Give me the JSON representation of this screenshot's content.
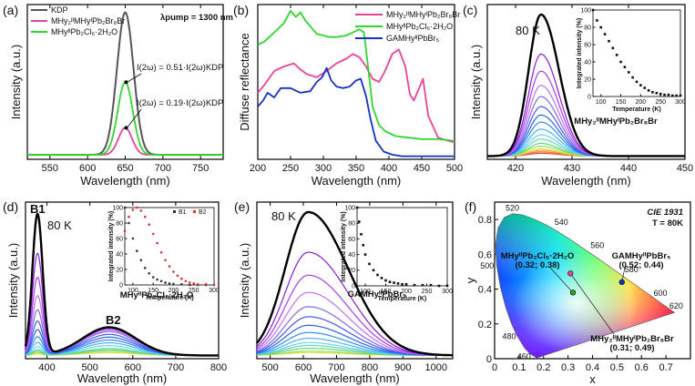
{
  "chart_data": [
    {
      "panel": "(a)",
      "type": "line",
      "xlabel": "Wavelength (nm)",
      "ylabel": "Intensity (a.u.)",
      "xlim": [
        520,
        780
      ],
      "ylim": [
        0,
        1.08
      ],
      "xticks": [
        550,
        600,
        650,
        700,
        750
      ],
      "yticks_shown": false,
      "pump_label": "λpump = 1300 nm",
      "series": [
        {
          "name": "KDP",
          "color": "#555555",
          "width": 2.0,
          "center": 650,
          "sigma": 11,
          "amplitude": 1.0
        },
        {
          "name": "MHy2IIMHyIPb2Br8Br",
          "color": "#e8439a",
          "width": 1.8,
          "center": 650,
          "sigma": 9,
          "amplitude": 0.19
        },
        {
          "name": "MHyIIPb2Cl6·2H2O",
          "color": "#2fd62f",
          "width": 1.8,
          "center": 650,
          "sigma": 10,
          "amplitude": 0.51
        }
      ],
      "legend": [
        {
          "label": "KDP",
          "color": "#555555"
        },
        {
          "label": "MHy₂ᴵᴵMHyᴵPb₂Br₈Br",
          "color": "#e8439a"
        },
        {
          "label": "MHyᴵᴵPb₂Cl₆·2H₂O",
          "color": "#2fd62f"
        }
      ],
      "annotations": [
        "I(2ω) = 0.51·I(2ω)KDP",
        "I(2ω) = 0.19·I(2ω)KDP"
      ]
    },
    {
      "panel": "(b)",
      "type": "line",
      "xlabel": "Wavelength (nm)",
      "ylabel": "Diffuse reflectance",
      "xlim": [
        200,
        500
      ],
      "ylim": [
        0,
        1
      ],
      "xticks": [
        200,
        250,
        300,
        350,
        400,
        450,
        500
      ],
      "yticks_shown": false,
      "series": [
        {
          "name": "MHy2IIMHyIPb2Br8Br",
          "color": "#e8439a",
          "x": [
            200,
            210,
            225,
            240,
            255,
            265,
            275,
            290,
            305,
            320,
            335,
            345,
            355,
            365,
            375,
            385,
            395,
            405,
            415,
            425,
            432,
            438,
            445,
            452,
            460,
            475,
            490,
            500
          ],
          "y": [
            0.43,
            0.48,
            0.57,
            0.6,
            0.62,
            0.58,
            0.55,
            0.53,
            0.57,
            0.62,
            0.65,
            0.68,
            0.66,
            0.6,
            0.52,
            0.5,
            0.58,
            0.68,
            0.71,
            0.6,
            0.42,
            0.38,
            0.45,
            0.52,
            0.28,
            0.14,
            0.12,
            0.11
          ]
        },
        {
          "name": "MHyIIPb2Cl6·2H2O",
          "color": "#2fd62f",
          "x": [
            200,
            210,
            225,
            240,
            250,
            258,
            265,
            272,
            280,
            290,
            300,
            310,
            320,
            335,
            345,
            355,
            362,
            368,
            375,
            385,
            395,
            410,
            430,
            450,
            475,
            500
          ],
          "y": [
            0.74,
            0.76,
            0.82,
            0.88,
            0.96,
            0.92,
            0.95,
            0.9,
            0.86,
            0.81,
            0.8,
            0.79,
            0.79,
            0.8,
            0.82,
            0.84,
            0.82,
            0.6,
            0.34,
            0.22,
            0.18,
            0.15,
            0.14,
            0.13,
            0.13,
            0.12
          ]
        },
        {
          "name": "GAMHyIIPbBr5",
          "color": "#1430c8",
          "x": [
            200,
            208,
            215,
            225,
            235,
            250,
            265,
            280,
            290,
            298,
            305,
            312,
            320,
            330,
            340,
            350,
            357,
            365,
            372,
            380,
            392,
            405,
            420,
            440,
            470,
            500
          ],
          "y": [
            0.34,
            0.38,
            0.43,
            0.4,
            0.46,
            0.46,
            0.43,
            0.44,
            0.5,
            0.53,
            0.59,
            0.51,
            0.47,
            0.46,
            0.47,
            0.51,
            0.52,
            0.41,
            0.26,
            0.12,
            0.05,
            0.03,
            0.02,
            0.02,
            0.02,
            0.02
          ]
        }
      ],
      "legend": [
        {
          "label": "MHy₂ᴵᴵMHyᴵPb₂Br₈Br",
          "color": "#e8439a"
        },
        {
          "label": "MHyᴵᴵPb₂Cl₆·2H₂O",
          "color": "#2fd62f"
        },
        {
          "label": "GAMHyᴵᴵPbBr₅",
          "color": "#1430c8"
        }
      ]
    },
    {
      "panel": "(c)",
      "type": "line",
      "xlabel": "Wavelength (nm)",
      "ylabel": "Intensity (a.u.)",
      "xlim": [
        415,
        450
      ],
      "xticks": [
        420,
        430,
        440,
        450
      ],
      "temp_label": "80 K",
      "compound_label": "MHy₂ᴵᴵMHyᴵPb₂Br₈Br",
      "family": {
        "center": 424.5,
        "sigma_left": 2.2,
        "sigma_right": 3.2,
        "amplitudes": [
          1.0,
          0.72,
          0.6,
          0.5,
          0.42,
          0.35,
          0.29,
          0.24,
          0.19,
          0.15,
          0.12,
          0.09,
          0.07,
          0.05,
          0.04,
          0.03,
          0.02
        ]
      },
      "inset": {
        "xlabel": "Temperature (K)",
        "ylabel": "Integrated intensity (%)",
        "xlim": [
          80,
          300
        ],
        "ylim": [
          0,
          100
        ],
        "xticks": [
          100,
          150,
          200,
          250,
          300
        ],
        "yticks": [
          0,
          20,
          40,
          60,
          80,
          100
        ],
        "x": [
          80,
          90,
          100,
          110,
          120,
          130,
          140,
          150,
          160,
          170,
          180,
          190,
          200,
          210,
          220,
          230,
          240,
          250,
          260,
          270,
          280,
          290,
          300
        ],
        "y": [
          100,
          88,
          80,
          72,
          64,
          56,
          48,
          40,
          34,
          28,
          22,
          17,
          13,
          10,
          7,
          5,
          4,
          3,
          2,
          2,
          1,
          1,
          1
        ]
      }
    },
    {
      "panel": "(d)",
      "type": "line",
      "xlabel": "Wavelength (nm)",
      "ylabel": "Intensity (a.u.)",
      "xlim": [
        350,
        800
      ],
      "xticks": [
        400,
        500,
        600,
        700,
        800
      ],
      "temp_label": "80 K",
      "band_labels": [
        "B1",
        "B2"
      ],
      "compound_label": "MHyᴵᴵPb₂Cl₆·2H₂O",
      "family": {
        "b1_center": 378,
        "b1_sigma": 12,
        "b2_center": 545,
        "b2_sigma": 62,
        "b1_amplitudes": [
          1.0,
          0.72,
          0.55,
          0.42,
          0.32,
          0.24,
          0.18,
          0.13,
          0.09,
          0.06,
          0.04,
          0.03,
          0.02,
          0.01
        ],
        "b2_amplitudes": [
          0.2,
          0.2,
          0.19,
          0.18,
          0.17,
          0.15,
          0.13,
          0.11,
          0.09,
          0.07,
          0.05,
          0.04,
          0.03,
          0.02
        ]
      },
      "inset": {
        "xlabel": "Temperature (K)",
        "ylabel": "Integrated intensity (%)",
        "xlim": [
          80,
          300
        ],
        "ylim": [
          0,
          100
        ],
        "xticks": [
          100,
          150,
          200,
          250,
          300
        ],
        "yticks": [
          0,
          20,
          40,
          60,
          80,
          100
        ],
        "legend": [
          {
            "label": "B1",
            "color": "#333333"
          },
          {
            "label": "B2",
            "color": "#e03030"
          }
        ],
        "series": [
          {
            "name": "B1",
            "color": "#333333",
            "x": [
              80,
              90,
              100,
              110,
              120,
              130,
              140,
              150,
              160,
              170,
              180,
              190,
              200,
              220,
              240,
              260,
              280,
              300
            ],
            "y": [
              100,
              80,
              60,
              44,
              32,
              22,
              15,
              10,
              7,
              5,
              3,
              2,
              1,
              1,
              0,
              0,
              0,
              0
            ]
          },
          {
            "name": "B2",
            "color": "#e03030",
            "x": [
              80,
              90,
              100,
              110,
              120,
              130,
              140,
              150,
              160,
              170,
              180,
              190,
              200,
              210,
              220,
              230,
              240,
              250,
              260,
              280,
              300
            ],
            "y": [
              70,
              88,
              97,
              100,
              96,
              88,
              78,
              66,
              54,
              42,
              32,
              24,
              17,
              12,
              8,
              5,
              3,
              2,
              1,
              1,
              0
            ]
          }
        ]
      }
    },
    {
      "panel": "(e)",
      "type": "line",
      "xlabel": "Wavelength (nm)",
      "ylabel": "Intensity (a.u.)",
      "xlim": [
        460,
        1050
      ],
      "xticks": [
        500,
        600,
        700,
        800,
        900,
        1000
      ],
      "temp_label": "80 K",
      "compound_label": "GAMHyᴵᴵPbBr₅",
      "family": {
        "center": 615,
        "sigma_left": 70,
        "sigma_right": 120,
        "amplitudes": [
          1.0,
          0.72,
          0.56,
          0.44,
          0.34,
          0.27,
          0.21,
          0.16,
          0.12,
          0.09,
          0.07,
          0.05,
          0.03,
          0.02
        ]
      },
      "inset": {
        "xlabel": "Temperature (K)",
        "ylabel": "Integrated intensity (%)",
        "xlim": [
          80,
          300
        ],
        "ylim": [
          0,
          100
        ],
        "xticks": [
          100,
          150,
          200,
          250,
          300
        ],
        "yticks": [
          0,
          20,
          40,
          60,
          80,
          100
        ],
        "x": [
          80,
          85,
          90,
          95,
          100,
          110,
          120,
          130,
          140,
          150,
          160,
          170,
          180,
          190,
          200,
          220,
          240,
          260,
          280,
          300
        ],
        "y": [
          100,
          82,
          66,
          52,
          40,
          28,
          20,
          14,
          10,
          7,
          5,
          4,
          3,
          2,
          2,
          1,
          1,
          1,
          0,
          0
        ]
      }
    },
    {
      "panel": "(f)",
      "type": "scatter",
      "title": "CIE 1931",
      "subtitle": "T = 80K",
      "xlabel": "x",
      "ylabel": "y",
      "xlim": [
        0.0,
        0.8
      ],
      "ylim": [
        0.0,
        0.9
      ],
      "xticks": [
        0.0,
        0.1,
        0.2,
        0.3,
        0.4,
        0.5,
        0.6,
        0.7
      ],
      "yticks": [
        0.0,
        0.2,
        0.4,
        0.6,
        0.8
      ],
      "wavelength_labels": [
        "460",
        "480",
        "500",
        "520",
        "540",
        "560",
        "580",
        "600",
        "620"
      ],
      "points": [
        {
          "name": "MHyᴵᴵPb₂Cl₆·2H₂O",
          "coords_label": "(0.32; 0.38)",
          "x": 0.32,
          "y": 0.38,
          "color": "#22aa22"
        },
        {
          "name": "GAMHyᴵᴵPbBr₅",
          "coords_label": "(0.52; 0.44)",
          "x": 0.52,
          "y": 0.44,
          "color": "#1430c8"
        },
        {
          "name": "MHy₂ᴵᴵMHyᴵPb₂Br₈Br",
          "coords_label": "(0.31; 0.49)",
          "x": 0.31,
          "y": 0.49,
          "color": "#e8439a"
        }
      ]
    }
  ]
}
